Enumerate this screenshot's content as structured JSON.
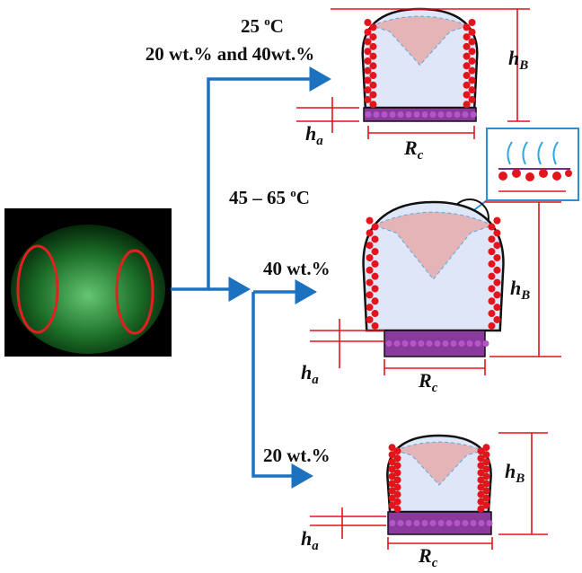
{
  "conditions": {
    "low_temperature": {
      "number": "25 ",
      "sup": "o",
      "unit": "C"
    },
    "low_concentrations": "20 wt.% and 40wt.%",
    "high_temperature": {
      "number": "45 – 65 ",
      "sup": "o",
      "unit": "C"
    },
    "high_concentration_a": "40 wt.%",
    "high_concentration_b": "20 wt.%"
  },
  "dimension_labels": {
    "bubble_height": {
      "symbol": "h",
      "subscript": "B"
    },
    "adhesion_height": {
      "symbol": "h",
      "subscript": "a"
    },
    "contact_width": {
      "symbol": "R",
      "subscript": "c"
    }
  }
}
